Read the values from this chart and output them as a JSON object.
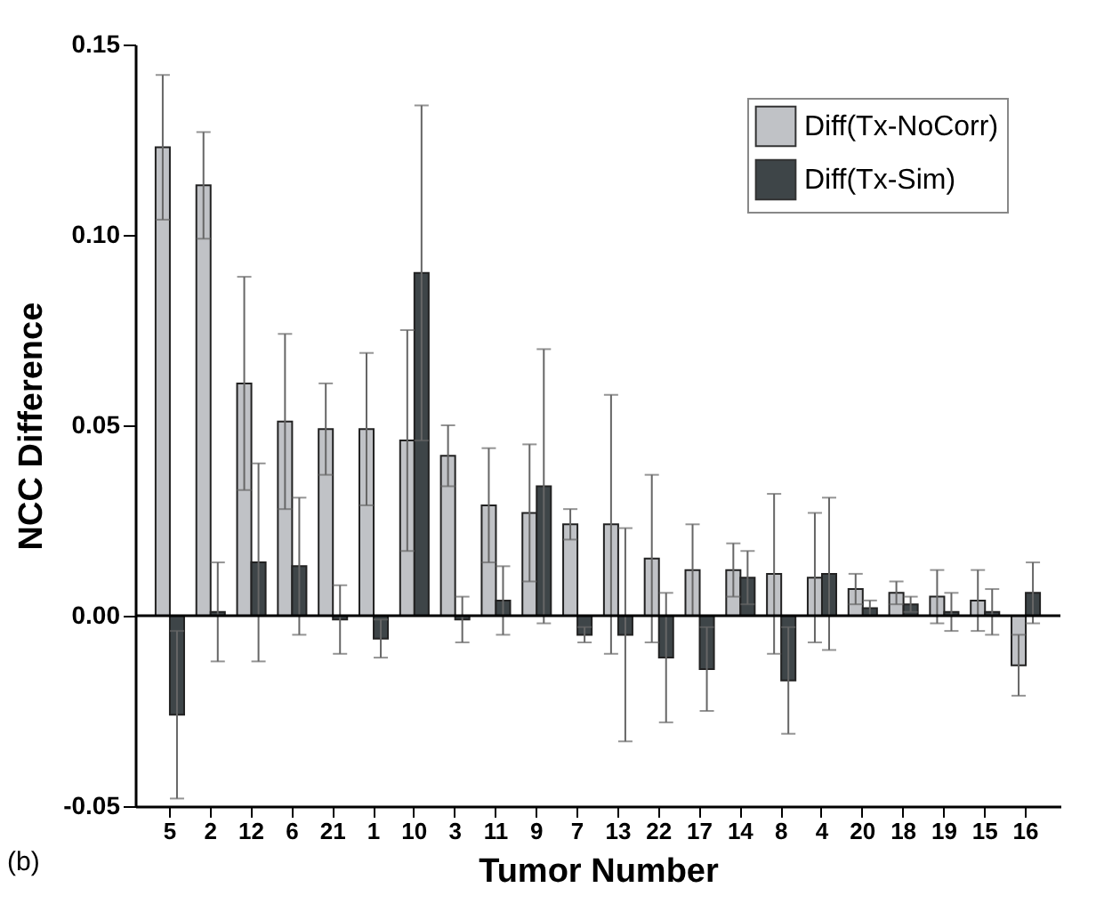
{
  "chart_data": {
    "type": "bar",
    "xlabel": "Tumor Number",
    "ylabel": "NCC Difference",
    "annotations": [
      "(b)"
    ],
    "categories": [
      "5",
      "2",
      "12",
      "6",
      "21",
      "1",
      "10",
      "3",
      "11",
      "9",
      "7",
      "13",
      "22",
      "17",
      "14",
      "8",
      "4",
      "20",
      "18",
      "19",
      "15",
      "16"
    ],
    "series": [
      {
        "name": "Diff(Tx-NoCorr)",
        "color": "#c0c2c6",
        "values": [
          0.123,
          0.113,
          0.061,
          0.051,
          0.049,
          0.049,
          0.046,
          0.042,
          0.029,
          0.027,
          0.024,
          0.024,
          0.015,
          0.012,
          0.012,
          0.011,
          0.01,
          0.007,
          0.006,
          0.005,
          0.004,
          -0.013
        ],
        "errors": [
          0.019,
          0.014,
          0.028,
          0.023,
          0.012,
          0.02,
          0.029,
          0.008,
          0.015,
          0.018,
          0.004,
          0.034,
          0.022,
          0.012,
          0.007,
          0.021,
          0.017,
          0.004,
          0.003,
          0.007,
          0.008,
          0.008
        ]
      },
      {
        "name": "Diff(Tx-Sim)",
        "color": "#3e4548",
        "values": [
          -0.026,
          0.001,
          0.014,
          0.013,
          -0.001,
          -0.006,
          0.09,
          -0.001,
          0.004,
          0.034,
          -0.005,
          -0.005,
          -0.011,
          -0.014,
          0.01,
          -0.017,
          0.011,
          0.002,
          0.003,
          0.001,
          0.001,
          0.006
        ],
        "errors": [
          0.022,
          0.013,
          0.026,
          0.018,
          0.009,
          0.005,
          0.044,
          0.006,
          0.009,
          0.036,
          0.002,
          0.028,
          0.017,
          0.011,
          0.007,
          0.014,
          0.02,
          0.002,
          0.002,
          0.005,
          0.006,
          0.008
        ]
      }
    ],
    "ylim": [
      -0.05,
      0.15
    ],
    "yticks": [
      {
        "value": -0.05,
        "label": "-0.05"
      },
      {
        "value": 0,
        "label": "0.00"
      },
      {
        "value": 0.05,
        "label": "0.05"
      },
      {
        "value": 0.1,
        "label": "0.10"
      },
      {
        "value": 0.15,
        "label": "0.15"
      }
    ],
    "legend": "top right",
    "grid": false,
    "ref_lines": [
      {
        "axis": "y",
        "value": 0
      }
    ]
  }
}
